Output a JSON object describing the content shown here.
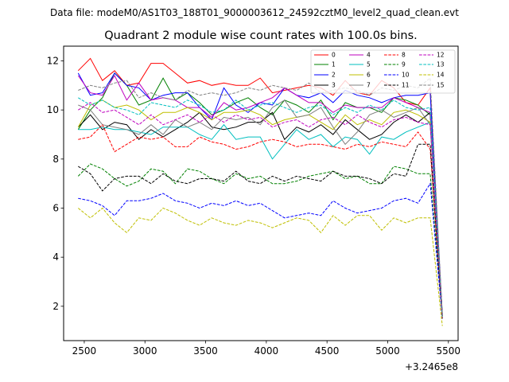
{
  "suptitle": "Data file: modeM0/AS1T03_188T01_9000003612_24592cztM0_level2_quad_clean.evt",
  "chart_data": {
    "type": "line",
    "title": "Quadrant 2 module wise count rates with 100.0s bins.",
    "xlabel": "",
    "ylabel": "",
    "x_offset_label": "+3.2465e8",
    "xlim": [
      2330,
      5580
    ],
    "ylim": [
      0.6,
      12.6
    ],
    "x_ticks": [
      2500,
      3000,
      3500,
      4000,
      4500,
      5000,
      5500
    ],
    "y_ticks": [
      2,
      4,
      6,
      8,
      10,
      12
    ],
    "grid": false,
    "legend_position": "top-right",
    "x": [
      2450,
      2550,
      2650,
      2750,
      2850,
      2950,
      3050,
      3150,
      3250,
      3350,
      3450,
      3550,
      3650,
      3750,
      3850,
      3950,
      4050,
      4150,
      4250,
      4350,
      4450,
      4550,
      4650,
      4750,
      4850,
      4950,
      5050,
      5150,
      5250,
      5350,
      5450
    ],
    "series": [
      {
        "name": "0",
        "color": "#ff0000",
        "dash": "solid",
        "values": [
          11.6,
          12.1,
          11.2,
          11.6,
          11.0,
          11.1,
          11.9,
          11.9,
          11.5,
          11.1,
          11.2,
          11.0,
          11.1,
          11.0,
          11.0,
          11.3,
          10.7,
          10.8,
          10.9,
          11.0,
          10.9,
          10.6,
          11.2,
          10.7,
          10.6,
          11.2,
          10.9,
          10.3,
          10.2,
          10.9,
          1.5
        ]
      },
      {
        "name": "1",
        "color": "#008000",
        "dash": "solid",
        "values": [
          9.2,
          10.0,
          10.5,
          11.5,
          11.0,
          10.2,
          10.4,
          11.3,
          10.4,
          10.7,
          10.3,
          9.8,
          10.0,
          10.3,
          10.5,
          10.1,
          9.8,
          10.4,
          10.2,
          9.9,
          10.4,
          9.6,
          10.3,
          10.1,
          10.1,
          9.9,
          10.5,
          10.4,
          10.2,
          9.8,
          1.7
        ]
      },
      {
        "name": "2",
        "color": "#0000ff",
        "dash": "solid",
        "values": [
          11.5,
          10.6,
          10.7,
          11.5,
          11.0,
          10.9,
          10.4,
          10.6,
          10.7,
          10.7,
          10.1,
          9.6,
          10.9,
          10.2,
          9.9,
          10.3,
          10.2,
          10.9,
          10.6,
          10.5,
          10.7,
          10.3,
          10.8,
          10.6,
          10.5,
          10.3,
          10.5,
          10.6,
          10.6,
          10.7,
          1.6
        ]
      },
      {
        "name": "3",
        "color": "#000000",
        "dash": "solid",
        "values": [
          9.3,
          9.8,
          9.2,
          9.5,
          9.4,
          8.8,
          9.2,
          8.9,
          9.2,
          9.5,
          9.9,
          9.3,
          9.2,
          9.3,
          9.5,
          9.5,
          9.9,
          8.8,
          9.3,
          9.1,
          9.4,
          9.0,
          9.6,
          9.2,
          8.8,
          9.0,
          9.5,
          9.8,
          9.5,
          9.9,
          1.6
        ]
      },
      {
        "name": "4",
        "color": "#bf00bf",
        "dash": "solid",
        "values": [
          11.4,
          10.7,
          10.6,
          11.4,
          10.4,
          11.1,
          10.4,
          10.5,
          10.4,
          10.1,
          10.1,
          9.7,
          10.3,
          10.0,
          10.1,
          10.3,
          10.5,
          10.9,
          10.6,
          10.3,
          10.3,
          9.9,
          10.2,
          10.1,
          10.1,
          10.1,
          10.5,
          10.3,
          10.1,
          9.9,
          1.6
        ]
      },
      {
        "name": "5",
        "color": "#00bfbf",
        "dash": "solid",
        "values": [
          9.2,
          9.2,
          9.3,
          9.2,
          9.2,
          9.1,
          9.0,
          9.3,
          9.3,
          9.3,
          9.0,
          8.8,
          9.4,
          8.8,
          8.9,
          8.9,
          8.0,
          8.6,
          9.2,
          8.8,
          9.0,
          8.5,
          8.9,
          8.8,
          8.2,
          8.9,
          8.8,
          9.1,
          9.3,
          9.5,
          1.5
        ]
      },
      {
        "name": "6",
        "color": "#bfbf00",
        "dash": "solid",
        "values": [
          9.3,
          10.2,
          10.4,
          10.1,
          10.2,
          10.0,
          9.6,
          9.9,
          9.9,
          10.1,
          9.9,
          9.6,
          9.9,
          9.9,
          10.0,
          9.8,
          9.4,
          9.6,
          9.7,
          9.8,
          9.5,
          9.2,
          9.8,
          9.4,
          9.6,
          9.4,
          9.9,
          10.0,
          9.8,
          9.5,
          1.5
        ]
      },
      {
        "name": "7",
        "color": "#808080",
        "dash": "solid",
        "values": [
          10.2,
          10.0,
          9.4,
          9.3,
          9.2,
          9.0,
          9.4,
          9.0,
          9.6,
          9.3,
          9.5,
          9.2,
          9.7,
          9.6,
          9.7,
          9.4,
          10.1,
          10.4,
          9.7,
          9.8,
          10.1,
          9.3,
          8.6,
          9.1,
          9.8,
          10.0,
          9.7,
          9.9,
          10.1,
          9.4,
          1.6
        ]
      },
      {
        "name": "8",
        "color": "#ff0000",
        "dash": "dashed",
        "values": [
          8.8,
          8.9,
          9.4,
          8.3,
          8.6,
          8.9,
          8.8,
          8.9,
          8.5,
          8.5,
          8.9,
          8.7,
          8.6,
          8.4,
          8.5,
          8.7,
          8.8,
          8.7,
          8.5,
          8.6,
          8.6,
          8.5,
          8.4,
          8.6,
          8.5,
          8.7,
          8.6,
          8.5,
          9.1,
          8.4,
          1.5
        ]
      },
      {
        "name": "9",
        "color": "#008000",
        "dash": "dashed",
        "values": [
          7.3,
          7.8,
          7.6,
          7.2,
          6.9,
          7.1,
          7.6,
          7.5,
          7.0,
          7.6,
          7.5,
          7.2,
          7.0,
          7.4,
          7.2,
          7.3,
          7.0,
          7.0,
          7.1,
          7.3,
          7.4,
          7.5,
          7.2,
          7.3,
          7.0,
          7.0,
          7.7,
          7.6,
          7.4,
          7.4,
          1.6
        ]
      },
      {
        "name": "10",
        "color": "#0000ff",
        "dash": "dashed",
        "values": [
          6.4,
          6.3,
          6.1,
          5.7,
          6.3,
          6.3,
          6.4,
          6.6,
          6.3,
          6.2,
          6.0,
          6.2,
          6.1,
          6.3,
          6.1,
          6.2,
          5.9,
          5.6,
          5.7,
          5.8,
          5.7,
          6.3,
          6.0,
          5.8,
          5.9,
          6.0,
          6.3,
          6.4,
          6.2,
          7.0,
          1.5
        ]
      },
      {
        "name": "11",
        "color": "#000000",
        "dash": "dashed",
        "values": [
          7.7,
          7.4,
          6.7,
          7.2,
          7.3,
          7.3,
          7.0,
          7.4,
          7.1,
          7.0,
          7.2,
          7.2,
          7.1,
          7.5,
          7.1,
          7.0,
          7.3,
          7.1,
          7.3,
          7.2,
          7.1,
          7.5,
          7.3,
          7.3,
          7.2,
          7.0,
          7.4,
          7.3,
          8.6,
          8.6,
          1.5
        ]
      },
      {
        "name": "12",
        "color": "#bf00bf",
        "dash": "dashed",
        "values": [
          10.0,
          10.3,
          9.9,
          10.0,
          9.7,
          9.4,
          9.8,
          9.4,
          9.6,
          9.8,
          9.5,
          9.8,
          9.5,
          9.8,
          9.6,
          9.7,
          9.3,
          9.5,
          9.6,
          9.3,
          9.6,
          9.7,
          9.4,
          9.8,
          9.5,
          9.3,
          9.6,
          9.7,
          9.5,
          9.4,
          1.5
        ]
      },
      {
        "name": "13",
        "color": "#00bfbf",
        "dash": "dashed",
        "values": [
          10.5,
          10.2,
          10.4,
          10.1,
          10.0,
          9.8,
          10.3,
          10.2,
          10.1,
          10.4,
          10.2,
          9.9,
          10.0,
          10.4,
          10.0,
          10.2,
          10.3,
          10.1,
          9.9,
          10.1,
          10.2,
          9.8,
          10.1,
          9.9,
          10.2,
          10.0,
          10.4,
          10.1,
          10.0,
          10.1,
          1.5
        ]
      },
      {
        "name": "14",
        "color": "#bfbf00",
        "dash": "dashed",
        "values": [
          6.0,
          5.6,
          6.0,
          5.4,
          5.0,
          5.6,
          5.5,
          6.0,
          5.8,
          5.5,
          5.3,
          5.6,
          5.4,
          5.3,
          5.5,
          5.4,
          5.2,
          5.4,
          5.6,
          5.5,
          5.0,
          5.7,
          5.3,
          5.7,
          5.7,
          5.1,
          5.6,
          5.4,
          5.6,
          5.6,
          1.2
        ]
      },
      {
        "name": "15",
        "color": "#808080",
        "dash": "dashed",
        "values": [
          10.8,
          11.0,
          10.9,
          11.1,
          11.2,
          10.5,
          10.7,
          10.5,
          10.4,
          10.8,
          10.6,
          10.7,
          10.6,
          10.7,
          10.9,
          10.8,
          11.0,
          10.9,
          10.8,
          11.1,
          10.7,
          10.8,
          10.9,
          10.8,
          10.6,
          10.9,
          10.8,
          11.0,
          10.9,
          11.3,
          1.6
        ]
      }
    ]
  }
}
